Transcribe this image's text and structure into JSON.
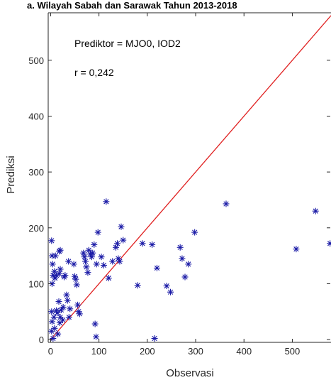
{
  "chart_data": {
    "type": "scatter",
    "title": "a. Wilayah Sabah dan Sarawak Tahun 2013-2018",
    "xlabel": "Observasi",
    "ylabel": "Prediksi",
    "xlim": [
      -5,
      580
    ],
    "ylim": [
      -5,
      585
    ],
    "xticks": [
      0,
      100,
      200,
      300,
      400,
      500
    ],
    "yticks": [
      0,
      100,
      200,
      300,
      400,
      500
    ],
    "grid": false,
    "annotations": [
      "Prediktor = MJO0, IOD2",
      "r = 0,242"
    ],
    "colors": {
      "points": "#1a1aa6",
      "reference_line": "#e02020",
      "axes": "#262626"
    },
    "reference_line": {
      "from": [
        0,
        0
      ],
      "to": [
        580,
        580
      ]
    },
    "points": [
      [
        2,
        177
      ],
      [
        3,
        150
      ],
      [
        4,
        135
      ],
      [
        5,
        115
      ],
      [
        3,
        100
      ],
      [
        2,
        50
      ],
      [
        3,
        32
      ],
      [
        2,
        15
      ],
      [
        5,
        2
      ],
      [
        8,
        122
      ],
      [
        9,
        110
      ],
      [
        7,
        40
      ],
      [
        8,
        20
      ],
      [
        12,
        52
      ],
      [
        10,
        150
      ],
      [
        12,
        115
      ],
      [
        14,
        48
      ],
      [
        15,
        10
      ],
      [
        18,
        118
      ],
      [
        20,
        126
      ],
      [
        18,
        158
      ],
      [
        20,
        160
      ],
      [
        17,
        68
      ],
      [
        19,
        30
      ],
      [
        20,
        40
      ],
      [
        22,
        53
      ],
      [
        25,
        35
      ],
      [
        26,
        58
      ],
      [
        28,
        112
      ],
      [
        30,
        115
      ],
      [
        33,
        80
      ],
      [
        35,
        70
      ],
      [
        37,
        140
      ],
      [
        38,
        40
      ],
      [
        40,
        55
      ],
      [
        48,
        135
      ],
      [
        50,
        113
      ],
      [
        52,
        108
      ],
      [
        54,
        98
      ],
      [
        56,
        62
      ],
      [
        58,
        50
      ],
      [
        60,
        46
      ],
      [
        68,
        155
      ],
      [
        70,
        148
      ],
      [
        72,
        140
      ],
      [
        74,
        130
      ],
      [
        77,
        120
      ],
      [
        79,
        160
      ],
      [
        82,
        153
      ],
      [
        85,
        148
      ],
      [
        87,
        155
      ],
      [
        90,
        170
      ],
      [
        92,
        28
      ],
      [
        94,
        5
      ],
      [
        95,
        135
      ],
      [
        98,
        192
      ],
      [
        105,
        148
      ],
      [
        110,
        133
      ],
      [
        115,
        247
      ],
      [
        120,
        110
      ],
      [
        128,
        140
      ],
      [
        135,
        165
      ],
      [
        138,
        172
      ],
      [
        140,
        145
      ],
      [
        143,
        140
      ],
      [
        146,
        202
      ],
      [
        150,
        178
      ],
      [
        180,
        97
      ],
      [
        190,
        172
      ],
      [
        210,
        170
      ],
      [
        215,
        2
      ],
      [
        220,
        128
      ],
      [
        240,
        96
      ],
      [
        248,
        85
      ],
      [
        268,
        165
      ],
      [
        272,
        145
      ],
      [
        278,
        112
      ],
      [
        285,
        135
      ],
      [
        298,
        192
      ],
      [
        363,
        243
      ],
      [
        508,
        162
      ],
      [
        548,
        230
      ],
      [
        578,
        172
      ]
    ]
  }
}
